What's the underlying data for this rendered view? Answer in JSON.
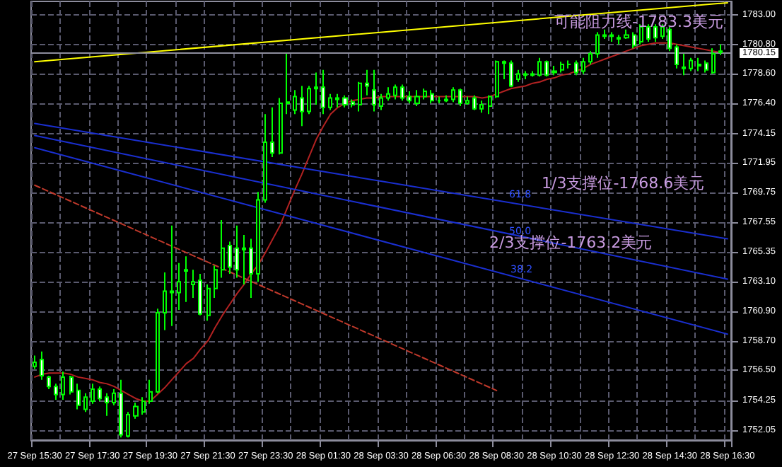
{
  "chart_data": {
    "type": "candlestick",
    "color": "#00ff00",
    "categories": [
      "27 Sep 15:30",
      null,
      null,
      null,
      null,
      null,
      null,
      null,
      "27 Sep 17:30",
      null,
      null,
      null,
      null,
      null,
      null,
      null,
      "27 Sep 19:30",
      null,
      null,
      null,
      null,
      null,
      null,
      null,
      "27 Sep 21:30",
      null,
      null,
      null,
      null,
      null,
      null,
      null,
      "27 Sep 23:30",
      null,
      null,
      null,
      null,
      null,
      null,
      null,
      "28 Sep 01:30",
      null,
      null,
      null,
      null,
      null,
      null,
      null,
      "28 Sep 03:30",
      null,
      null,
      null,
      null,
      null,
      null,
      null,
      "28 Sep 06:30",
      null,
      null,
      null,
      null,
      null,
      null,
      null,
      "28 Sep 08:30",
      null,
      null,
      null,
      null,
      null,
      null,
      null,
      "28 Sep 10:30",
      null,
      null,
      null,
      null,
      null,
      null,
      null,
      "28 Sep 12:30",
      null,
      null,
      null,
      null,
      null,
      null,
      null,
      "28 Sep 14:30",
      null,
      null,
      null,
      null,
      null,
      null,
      null,
      "28 Sep 16:30"
    ],
    "ohlc": [
      [
        1756.8,
        1757.6,
        1756.6,
        1757.1
      ],
      [
        1757.3,
        1757.9,
        1755.8,
        1756.1
      ],
      [
        1756.0,
        1756.1,
        1755.1,
        1755.3
      ],
      [
        1755.3,
        1755.5,
        1754.3,
        1754.7
      ],
      [
        1754.7,
        1756.4,
        1754.3,
        1756.0
      ],
      [
        1756.0,
        1756.1,
        1754.7,
        1754.9
      ],
      [
        1755.0,
        1755.5,
        1753.6,
        1753.9
      ],
      [
        1753.6,
        1754.8,
        1753.4,
        1754.5
      ],
      [
        1754.2,
        1755.5,
        1754.0,
        1755.1
      ],
      [
        1755.1,
        1755.3,
        1754.2,
        1754.4
      ],
      [
        1754.5,
        1754.8,
        1753.1,
        1754.1
      ],
      [
        1754.1,
        1755.1,
        1753.9,
        1754.8
      ],
      [
        1754.8,
        1755.8,
        1751.5,
        1751.7
      ],
      [
        1751.6,
        1753.4,
        1751.5,
        1753.2
      ],
      [
        1753.1,
        1754.1,
        1752.9,
        1753.8
      ],
      [
        1753.4,
        1754.5,
        1753.2,
        1754.2
      ],
      [
        1754.2,
        1755.8,
        1754.0,
        1754.9
      ],
      [
        1754.9,
        1761.1,
        1754.8,
        1760.8
      ],
      [
        1760.8,
        1763.8,
        1759.5,
        1762.4
      ],
      [
        1762.4,
        1767.3,
        1759.8,
        1762.3
      ],
      [
        1762.3,
        1764.5,
        1761.0,
        1763.1
      ],
      [
        1763.9,
        1765.0,
        1761.6,
        1764.0
      ],
      [
        1762.9,
        1764.0,
        1761.9,
        1763.1
      ],
      [
        1763.2,
        1763.7,
        1760.6,
        1760.7
      ],
      [
        1760.6,
        1762.9,
        1760.2,
        1762.6
      ],
      [
        1762.6,
        1764.3,
        1761.9,
        1764.0
      ],
      [
        1764.0,
        1767.7,
        1763.4,
        1765.6
      ],
      [
        1765.8,
        1766.1,
        1763.7,
        1764.2
      ],
      [
        1765.6,
        1767.3,
        1763.4,
        1764.0
      ],
      [
        1765.5,
        1766.6,
        1762.9,
        1765.6
      ],
      [
        1765.6,
        1766.3,
        1761.9,
        1763.7
      ],
      [
        1763.7,
        1769.8,
        1763.1,
        1769.2
      ],
      [
        1769.2,
        1775.6,
        1769.0,
        1773.5
      ],
      [
        1773.5,
        1776.1,
        1772.4,
        1772.7
      ],
      [
        1772.7,
        1776.8,
        1772.6,
        1776.4
      ],
      [
        1776.4,
        1780.1,
        1775.6,
        1776.5
      ],
      [
        1775.9,
        1777.4,
        1775.6,
        1776.9
      ],
      [
        1776.8,
        1777.7,
        1774.7,
        1775.8
      ],
      [
        1775.8,
        1777.7,
        1775.6,
        1777.5
      ],
      [
        1777.5,
        1778.7,
        1776.3,
        1777.6
      ],
      [
        1777.6,
        1778.9,
        1775.6,
        1776.1
      ],
      [
        1776.1,
        1777.1,
        1775.9,
        1776.8
      ],
      [
        1776.8,
        1777.1,
        1776.1,
        1776.7
      ],
      [
        1776.8,
        1777.0,
        1776.1,
        1776.3
      ],
      [
        1776.5,
        1776.7,
        1776.1,
        1776.3
      ],
      [
        1776.3,
        1778.0,
        1775.8,
        1777.9
      ],
      [
        1777.9,
        1778.9,
        1777.0,
        1777.7
      ],
      [
        1777.4,
        1778.9,
        1775.8,
        1776.3
      ],
      [
        1776.2,
        1777.1,
        1775.9,
        1776.8
      ],
      [
        1776.8,
        1777.6,
        1776.6,
        1777.1
      ],
      [
        1777.0,
        1777.8,
        1776.7,
        1777.6
      ],
      [
        1777.6,
        1777.8,
        1776.6,
        1776.8
      ],
      [
        1776.9,
        1777.3,
        1776.4,
        1776.6
      ],
      [
        1776.4,
        1777.4,
        1776.2,
        1776.9
      ],
      [
        1776.9,
        1777.5,
        1776.7,
        1777.3
      ],
      [
        1777.1,
        1777.4,
        1776.4,
        1776.6
      ],
      [
        1776.6,
        1776.9,
        1776.4,
        1776.6
      ],
      [
        1776.6,
        1777.0,
        1776.5,
        1776.7
      ],
      [
        1776.7,
        1777.6,
        1776.5,
        1777.4
      ],
      [
        1777.4,
        1777.5,
        1776.2,
        1776.4
      ],
      [
        1776.4,
        1776.9,
        1776.3,
        1776.6
      ],
      [
        1776.8,
        1777.0,
        1775.9,
        1776.0
      ],
      [
        1776.0,
        1776.6,
        1775.7,
        1776.3
      ],
      [
        1776.2,
        1777.0,
        1775.6,
        1776.9
      ],
      [
        1776.9,
        1779.6,
        1776.8,
        1779.5
      ],
      [
        1779.5,
        1779.6,
        1778.2,
        1779.4
      ],
      [
        1779.4,
        1779.6,
        1777.6,
        1777.7
      ],
      [
        1778.2,
        1778.9,
        1778.0,
        1778.6
      ],
      [
        1778.6,
        1778.8,
        1778.2,
        1778.5
      ],
      [
        1778.5,
        1778.8,
        1778.4,
        1778.6
      ],
      [
        1778.5,
        1779.8,
        1778.4,
        1779.5
      ],
      [
        1779.5,
        1779.6,
        1778.4,
        1778.5
      ],
      [
        1778.7,
        1779.2,
        1778.5,
        1778.8
      ],
      [
        1778.9,
        1779.5,
        1778.7,
        1779.3
      ],
      [
        1779.3,
        1779.6,
        1779.0,
        1779.3
      ],
      [
        1779.4,
        1779.6,
        1778.5,
        1778.7
      ],
      [
        1778.8,
        1779.8,
        1778.6,
        1779.5
      ],
      [
        1779.5,
        1780.3,
        1779.3,
        1780.1
      ],
      [
        1780.1,
        1781.7,
        1779.8,
        1781.5
      ],
      [
        1781.4,
        1781.9,
        1781.2,
        1781.5
      ],
      [
        1781.5,
        1781.7,
        1781.0,
        1781.4
      ],
      [
        1781.3,
        1781.5,
        1780.8,
        1781.2
      ],
      [
        1781.3,
        1781.9,
        1781.2,
        1781.5
      ],
      [
        1781.5,
        1781.7,
        1780.5,
        1780.7
      ],
      [
        1781.0,
        1782.3,
        1780.8,
        1782.1
      ],
      [
        1782.1,
        1782.3,
        1781.0,
        1781.2
      ],
      [
        1782.1,
        1782.3,
        1781.0,
        1781.3
      ],
      [
        1781.4,
        1782.3,
        1781.2,
        1782.1
      ],
      [
        1781.9,
        1782.1,
        1780.3,
        1780.5
      ],
      [
        1780.6,
        1780.8,
        1779.0,
        1779.3
      ],
      [
        1779.0,
        1780.1,
        1778.5,
        1779.1
      ],
      [
        1779.0,
        1779.8,
        1778.8,
        1779.6
      ],
      [
        1779.3,
        1779.8,
        1778.8,
        1779.2
      ],
      [
        1779.4,
        1779.6,
        1778.7,
        1778.9
      ],
      [
        1778.7,
        1780.5,
        1778.6,
        1780.1
      ],
      [
        1780.2,
        1780.8,
        1780.0,
        1780.3
      ],
      null
    ],
    "series": [
      {
        "type": "line",
        "color": "#ffff00",
        "x": [
          "27 Sep 15:30",
          "28 Sep 16:30"
        ],
        "values": [
          1779.5,
          1783.9
        ]
      },
      {
        "type": "line",
        "color": "#b22222",
        "values": [
          1756.0,
          1756.2,
          1756.3,
          1756.3,
          1756.3,
          1756.2,
          1756.0,
          1755.9,
          1755.8,
          1755.6,
          1755.5,
          1755.3,
          1755.0,
          1754.7,
          1754.4,
          1754.2,
          1754.2,
          1754.7,
          1755.2,
          1755.8,
          1756.4,
          1757.0,
          1757.4,
          1758.1,
          1758.7,
          1759.7,
          1760.6,
          1761.4,
          1762.2,
          1762.9,
          1763.7,
          1764.4,
          1765.3,
          1766.3,
          1767.3,
          1768.6,
          1769.9,
          1771.1,
          1772.4,
          1773.7,
          1774.7,
          1775.6,
          1776.1,
          1776.4,
          1776.6,
          1776.7,
          1776.8,
          1776.8,
          1776.9,
          1776.9,
          1776.9,
          1776.9,
          1776.9,
          1776.9,
          1776.9,
          1776.9,
          1776.9,
          1776.9,
          1776.9,
          1776.9,
          1776.9,
          1776.9,
          1776.8,
          1776.9,
          1777.1,
          1777.3,
          1777.5,
          1777.6,
          1777.7,
          1777.9,
          1778.0,
          1778.2,
          1778.3,
          1778.5,
          1778.6,
          1778.8,
          1779.0,
          1779.3,
          1779.5,
          1779.7,
          1779.9,
          1780.1,
          1780.3,
          1780.5,
          1780.7,
          1780.8,
          1780.9,
          1780.9,
          1780.9,
          1780.8,
          1780.7,
          1780.6,
          1780.5,
          1780.4,
          1780.3,
          1780.2,
          null
        ]
      },
      {
        "type": "line",
        "color": "#1a2fd0",
        "x": [
          "27 Sep 15:30",
          "28 Sep 16:30"
        ],
        "values": [
          1774.9,
          1766.3
        ]
      },
      {
        "type": "line",
        "color": "#1a2fd0",
        "x": [
          "27 Sep 15:30",
          "28 Sep 16:30"
        ],
        "values": [
          1774.0,
          1763.3
        ]
      },
      {
        "type": "line",
        "color": "#1a2fd0",
        "x": [
          "27 Sep 15:30",
          "28 Sep 16:30"
        ],
        "values": [
          1773.1,
          1759.2
        ]
      },
      {
        "type": "line",
        "color": "#c0392b",
        "line_style": "dashed",
        "x": [
          "27 Sep 15:30",
          "28 Sep 08:30"
        ],
        "values": [
          1770.3,
          1755.0
        ]
      }
    ],
    "ylim": [
      1751.3,
      1784.0
    ],
    "yticks": [
      {
        "value": 1783,
        "label": "1783.00"
      },
      {
        "value": 1780.8,
        "label": "1780.80"
      },
      {
        "value": 1778.6,
        "label": "1778.60"
      },
      {
        "value": 1776.4,
        "label": "1776.40"
      },
      1774.15,
      1771.95,
      1769.75,
      1767.55,
      1765.35,
      {
        "value": 1763.1,
        "label": "1763.10"
      },
      {
        "value": 1760.9,
        "label": "1760.90"
      },
      {
        "value": 1758.7,
        "label": "1758.70"
      },
      {
        "value": 1756.5,
        "label": "1756.50"
      },
      1754.25,
      1752.05
    ],
    "ref_lines": [
      {
        "axis": "y",
        "value": 1780.15,
        "label": "1780.15",
        "color": "#8c8c9c"
      }
    ],
    "annotations": [
      "可能阻力线-1783.3美元",
      "1/3支撑位-1768.6美元",
      "2/3支撑位-1763.2美元",
      "61.8",
      "50.0",
      "38.2"
    ],
    "grid": true,
    "marker": "none"
  }
}
